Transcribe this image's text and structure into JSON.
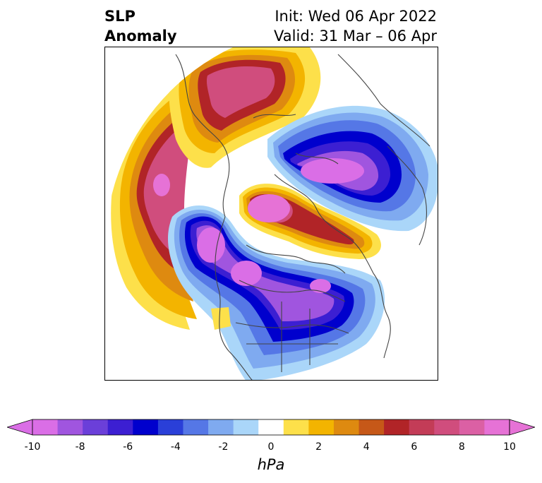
{
  "title": {
    "left_line1": "SLP",
    "left_line2": "Anomaly",
    "right_line1": "Init: Wed 06 Apr 2022",
    "right_line2": "Valid: 31 Mar – 06 Apr"
  },
  "colorbar": {
    "label": "hPa",
    "ticks": [
      "-10",
      "-8",
      "-6",
      "-4",
      "-2",
      "0",
      "2",
      "4",
      "6",
      "8",
      "10"
    ],
    "range": [
      -10,
      10
    ],
    "extend": "both",
    "colors": [
      "#da6ee6",
      "#a055df",
      "#6b3fd9",
      "#3c1fd2",
      "#0000cd",
      "#2a3fd8",
      "#5577e6",
      "#7faaf0",
      "#aad6f9",
      "#ffffff",
      "#fde04a",
      "#f3b400",
      "#de8a10",
      "#c65818",
      "#b12427",
      "#c33c57",
      "#d04d7d",
      "#db60a4",
      "#e672d6"
    ],
    "extend_low_color": "#da6ee6",
    "extend_high_color": "#e672d6"
  },
  "map": {
    "projection": "north-polar-stereographic",
    "field": "sea level pressure anomaly",
    "features": [
      "coastlines",
      "country borders",
      "state/province borders"
    ]
  }
}
